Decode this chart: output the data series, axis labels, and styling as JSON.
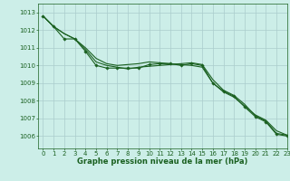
{
  "background_color": "#cceee8",
  "grid_color": "#aacccc",
  "line_color": "#1a6020",
  "title": "Graphe pression niveau de la mer (hPa)",
  "xlim": [
    -0.5,
    23
  ],
  "ylim": [
    1005.3,
    1013.5
  ],
  "yticks": [
    1006,
    1007,
    1008,
    1009,
    1010,
    1011,
    1012,
    1013
  ],
  "xticks": [
    0,
    1,
    2,
    3,
    4,
    5,
    6,
    7,
    8,
    9,
    10,
    11,
    12,
    13,
    14,
    15,
    16,
    17,
    18,
    19,
    20,
    21,
    22,
    23
  ],
  "line1_x": [
    0,
    1,
    2,
    3,
    4,
    5,
    6,
    7,
    8,
    9,
    10,
    11,
    12,
    13,
    14,
    15,
    16,
    17,
    18,
    19,
    20,
    21,
    22,
    23
  ],
  "line1": [
    1012.8,
    1012.2,
    1011.8,
    1011.5,
    1011.0,
    1010.4,
    1010.1,
    1010.0,
    1010.05,
    1010.1,
    1010.2,
    1010.15,
    1010.1,
    1010.05,
    1010.0,
    1009.9,
    1009.0,
    1008.5,
    1008.2,
    1007.7,
    1007.2,
    1006.9,
    1006.3,
    1006.05
  ],
  "line2_x": [
    0,
    1,
    2,
    3,
    4,
    5,
    6,
    7,
    8,
    9,
    10,
    11,
    12,
    13,
    14,
    15,
    16,
    17,
    18,
    19,
    20,
    21,
    22,
    23
  ],
  "line2": [
    1012.8,
    1012.2,
    1011.8,
    1011.5,
    1010.9,
    1010.2,
    1010.0,
    1009.9,
    1009.8,
    1009.9,
    1009.95,
    1010.0,
    1010.05,
    1010.1,
    1010.15,
    1010.05,
    1009.2,
    1008.6,
    1008.3,
    1007.8,
    1007.15,
    1006.85,
    1006.15,
    1006.05
  ],
  "line3_x": [
    0,
    1,
    2,
    3,
    4,
    5,
    6,
    7,
    8,
    9,
    10,
    11,
    12,
    13,
    14,
    15,
    16,
    17,
    18,
    19,
    20,
    21,
    22,
    23
  ],
  "line3": [
    1012.8,
    1012.2,
    1011.5,
    1011.5,
    1010.8,
    1010.0,
    1009.85,
    1009.85,
    1009.85,
    1009.85,
    1010.05,
    1010.1,
    1010.1,
    1010.0,
    1010.1,
    1010.0,
    1009.0,
    1008.55,
    1008.25,
    1007.65,
    1007.1,
    1006.8,
    1006.1,
    1006.0
  ],
  "tick_fontsize": 5,
  "xlabel_fontsize": 6
}
